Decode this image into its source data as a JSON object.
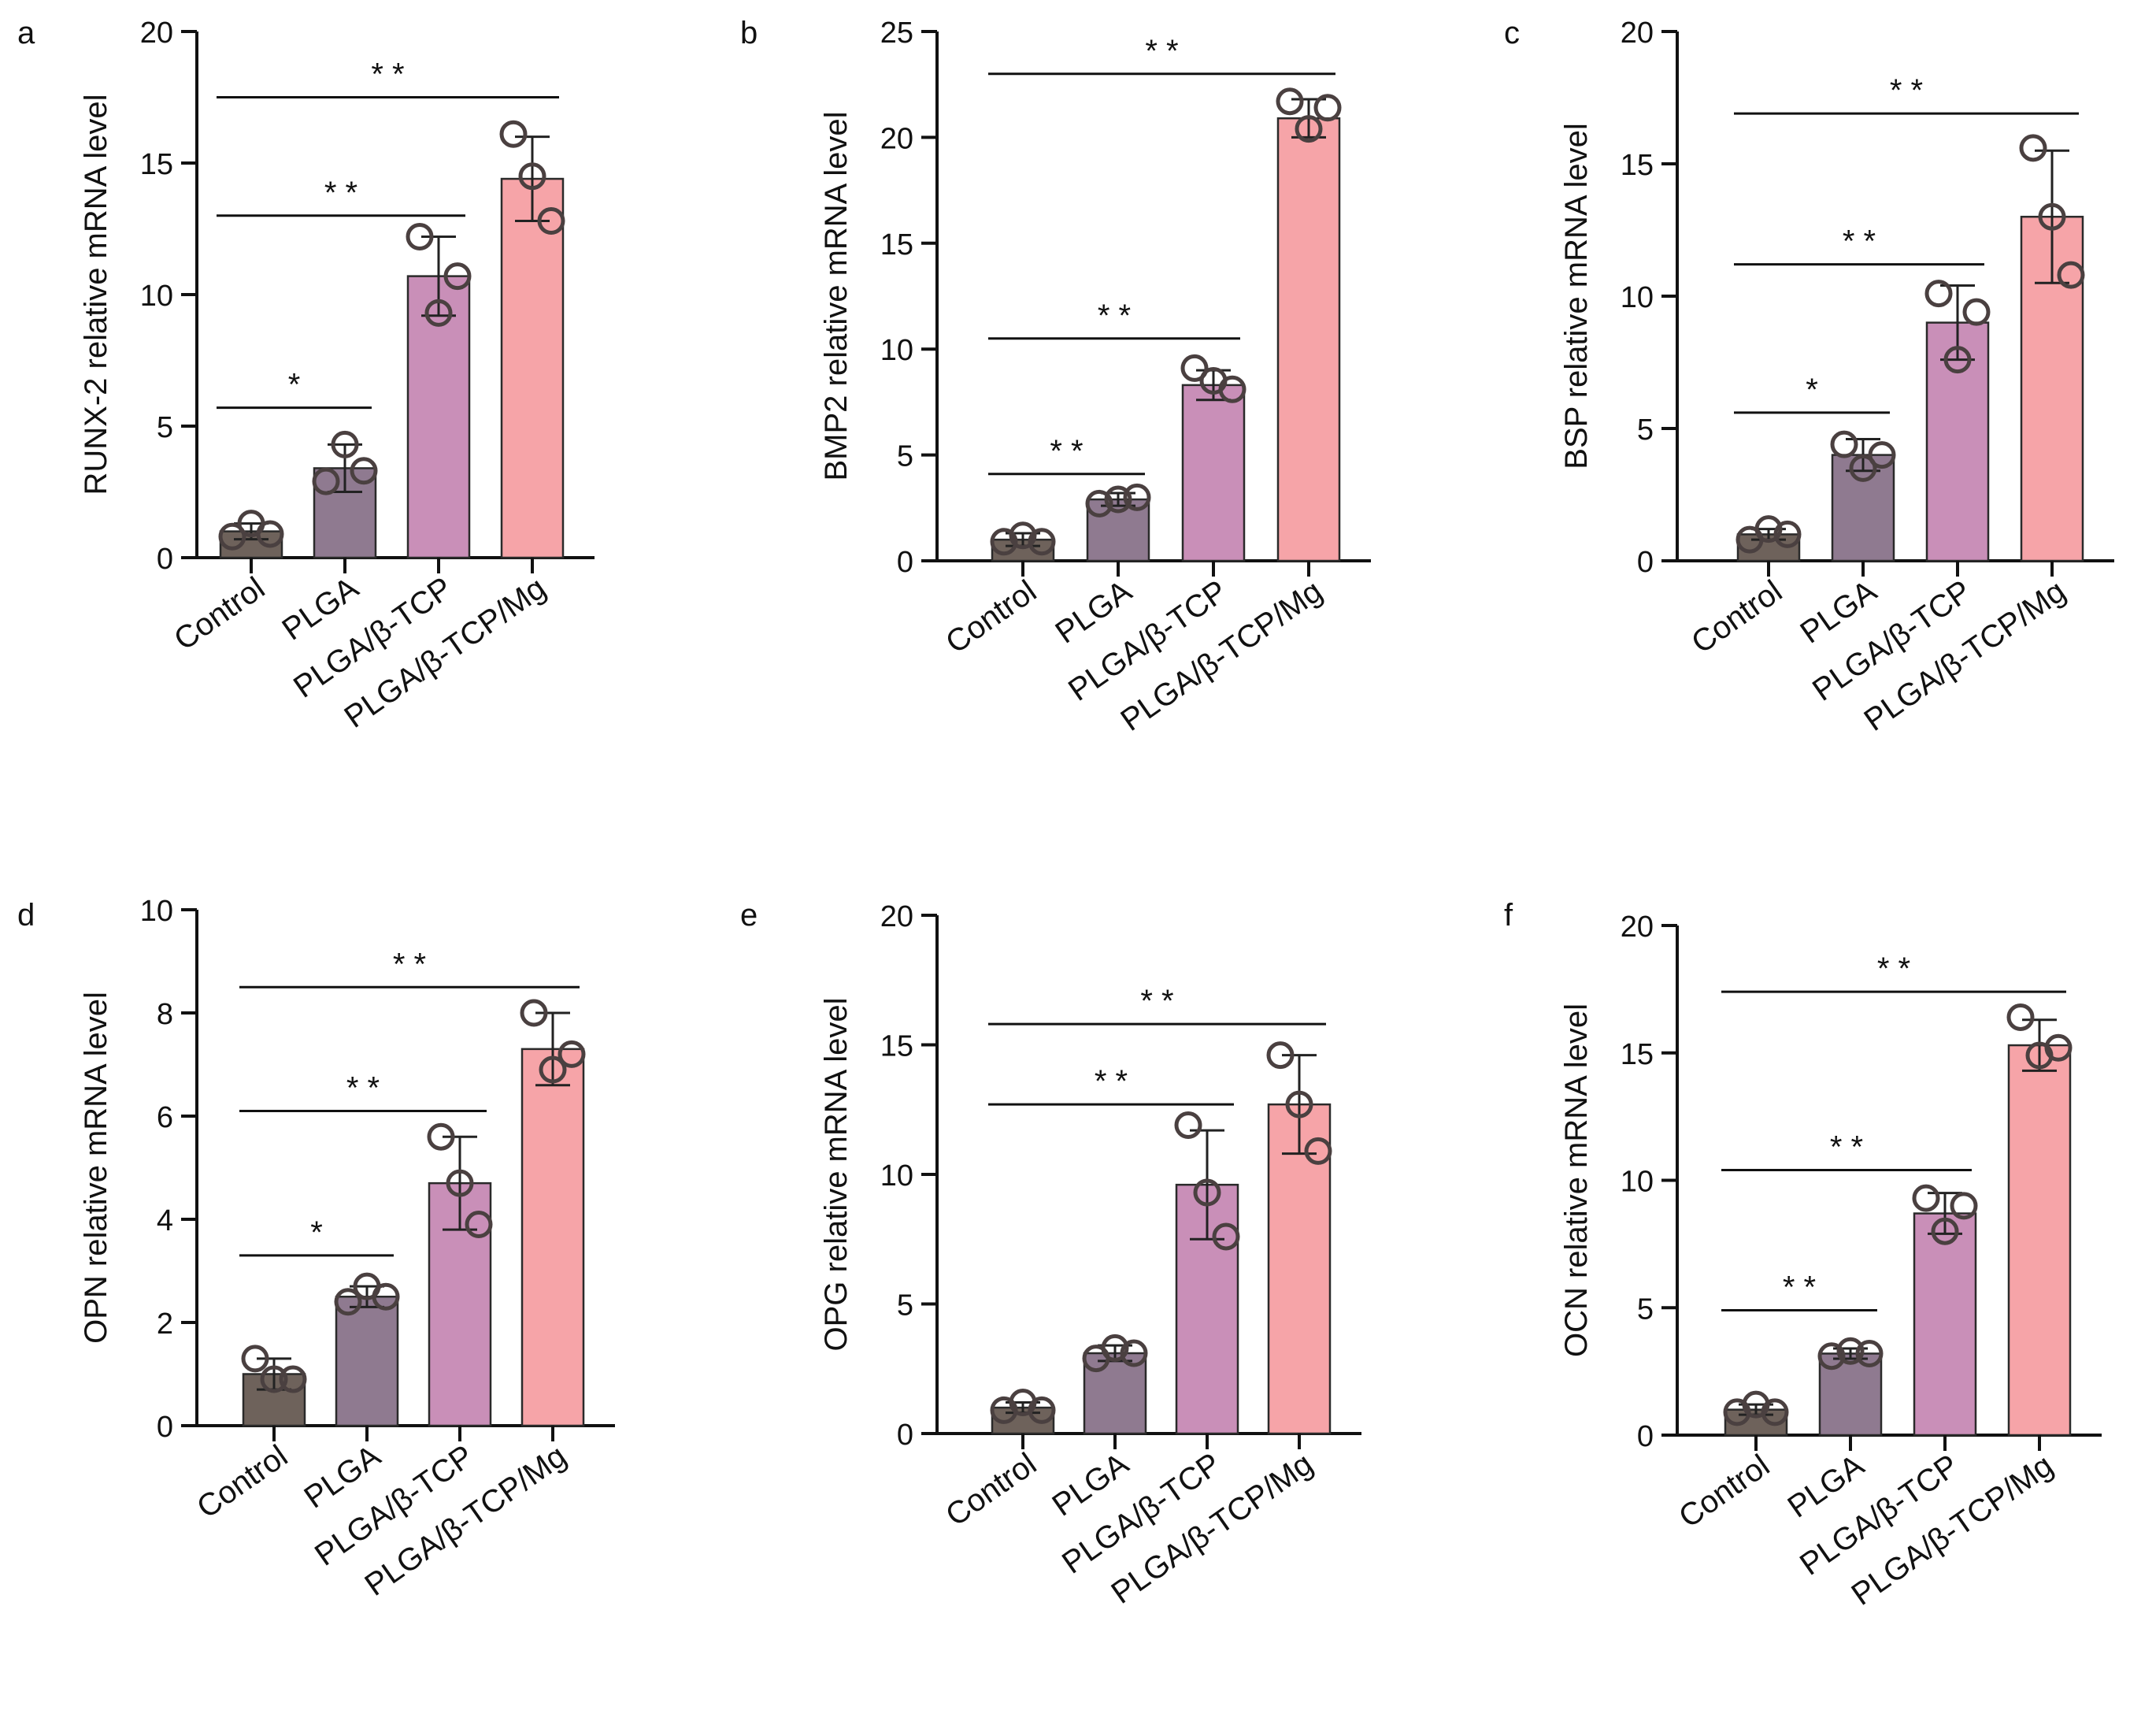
{
  "colors": {
    "axis": "#111111",
    "bar_fills": [
      "#6e625b",
      "#8f7a90",
      "#c98fb8",
      "#f6a4a8"
    ],
    "point_stroke": "#4a4040"
  },
  "chart_data": [
    {
      "type": "bar",
      "panel": "a",
      "ylabel": "RUNX-2 relative mRNA level",
      "categories": [
        "Control",
        "PLGA",
        "PLGA/β-TCP",
        "PLGA/β-TCP/Mg"
      ],
      "values": [
        1.0,
        3.4,
        10.7,
        14.4
      ],
      "sd": [
        0.3,
        0.9,
        1.5,
        1.6
      ],
      "points": [
        [
          0.8,
          1.3,
          0.9
        ],
        [
          2.9,
          4.3,
          3.3
        ],
        [
          12.2,
          9.3,
          10.7
        ],
        [
          16.1,
          14.5,
          12.8
        ]
      ],
      "ylim": [
        0,
        20
      ],
      "yticks": [
        0,
        5,
        10,
        15,
        20
      ],
      "significance": [
        {
          "from": 0,
          "to": 3,
          "y": 17.5,
          "label": "* *"
        },
        {
          "from": 0,
          "to": 2,
          "y": 13.0,
          "label": "* *"
        },
        {
          "from": 0,
          "to": 1,
          "y": 5.7,
          "label": "*"
        }
      ]
    },
    {
      "type": "bar",
      "panel": "b",
      "ylabel": "BMP2 relative mRNA level",
      "categories": [
        "Control",
        "PLGA",
        "PLGA/β-TCP",
        "PLGA/β-TCP/Mg"
      ],
      "values": [
        1.0,
        2.9,
        8.3,
        20.9
      ],
      "sd": [
        0.3,
        0.3,
        0.7,
        0.9
      ],
      "points": [
        [
          0.9,
          1.2,
          0.9
        ],
        [
          2.7,
          2.9,
          3.0
        ],
        [
          9.1,
          8.5,
          8.1
        ],
        [
          21.7,
          20.4,
          21.4
        ]
      ],
      "ylim": [
        0,
        25
      ],
      "yticks": [
        0,
        5,
        10,
        15,
        20,
        25
      ],
      "significance": [
        {
          "from": 0,
          "to": 3,
          "y": 23.0,
          "label": "* *"
        },
        {
          "from": 0,
          "to": 2,
          "y": 10.5,
          "label": "* *"
        },
        {
          "from": 0,
          "to": 1,
          "y": 4.1,
          "label": "* *"
        }
      ]
    },
    {
      "type": "bar",
      "panel": "c",
      "ylabel": "BSP relative mRNA level",
      "categories": [
        "Control",
        "PLGA",
        "PLGA/β-TCP",
        "PLGA/β-TCP/Mg"
      ],
      "values": [
        1.0,
        4.0,
        9.0,
        13.0
      ],
      "sd": [
        0.2,
        0.6,
        1.4,
        2.5
      ],
      "points": [
        [
          0.8,
          1.2,
          1.0
        ],
        [
          4.4,
          3.5,
          4.0
        ],
        [
          10.1,
          7.6,
          9.4
        ],
        [
          15.6,
          13.0,
          10.8
        ]
      ],
      "ylim": [
        0,
        20
      ],
      "yticks": [
        0,
        5,
        10,
        15,
        20
      ],
      "significance": [
        {
          "from": 0,
          "to": 3,
          "y": 16.9,
          "label": "* *"
        },
        {
          "from": 0,
          "to": 2,
          "y": 11.2,
          "label": "* *"
        },
        {
          "from": 0,
          "to": 1,
          "y": 5.6,
          "label": "*"
        }
      ]
    },
    {
      "type": "bar",
      "panel": "d",
      "ylabel": "OPN relative mRNA level",
      "categories": [
        "Control",
        "PLGA",
        "PLGA/β-TCP",
        "PLGA/β-TCP/Mg"
      ],
      "values": [
        1.0,
        2.5,
        4.7,
        7.3
      ],
      "sd": [
        0.3,
        0.2,
        0.9,
        0.7
      ],
      "points": [
        [
          1.3,
          0.9,
          0.9
        ],
        [
          2.4,
          2.7,
          2.5
        ],
        [
          5.6,
          4.7,
          3.9
        ],
        [
          8.0,
          6.9,
          7.2
        ]
      ],
      "ylim": [
        0,
        10
      ],
      "yticks": [
        0,
        2,
        4,
        6,
        8,
        10
      ],
      "significance": [
        {
          "from": 0,
          "to": 3,
          "y": 8.5,
          "label": "* *"
        },
        {
          "from": 0,
          "to": 2,
          "y": 6.1,
          "label": "* *"
        },
        {
          "from": 0,
          "to": 1,
          "y": 3.3,
          "label": "*"
        }
      ]
    },
    {
      "type": "bar",
      "panel": "e",
      "ylabel": "OPG relative mRNA level",
      "categories": [
        "Control",
        "PLGA",
        "PLGA/β-TCP",
        "PLGA/β-TCP/Mg"
      ],
      "values": [
        1.0,
        3.1,
        9.6,
        12.7
      ],
      "sd": [
        0.2,
        0.3,
        2.1,
        1.9
      ],
      "points": [
        [
          0.9,
          1.2,
          0.9
        ],
        [
          2.9,
          3.3,
          3.1
        ],
        [
          11.9,
          9.3,
          7.6
        ],
        [
          14.6,
          12.7,
          10.9
        ]
      ],
      "ylim": [
        0,
        20
      ],
      "yticks": [
        0,
        5,
        10,
        15,
        20
      ],
      "significance": [
        {
          "from": 0,
          "to": 3,
          "y": 15.8,
          "label": "* *"
        },
        {
          "from": 0,
          "to": 2,
          "y": 12.7,
          "label": "* *"
        }
      ]
    },
    {
      "type": "bar",
      "panel": "f",
      "ylabel": "OCN relative mRNA level",
      "categories": [
        "Control",
        "PLGA",
        "PLGA/β-TCP",
        "PLGA/β-TCP/Mg"
      ],
      "values": [
        1.0,
        3.2,
        8.7,
        15.3
      ],
      "sd": [
        0.2,
        0.2,
        0.8,
        1.0
      ],
      "points": [
        [
          0.9,
          1.2,
          0.9
        ],
        [
          3.1,
          3.3,
          3.2
        ],
        [
          9.3,
          8.0,
          9.0
        ],
        [
          16.4,
          14.9,
          15.2
        ]
      ],
      "ylim": [
        0,
        20
      ],
      "yticks": [
        0,
        5,
        10,
        15,
        20
      ],
      "significance": [
        {
          "from": 0,
          "to": 3,
          "y": 17.4,
          "label": "* *"
        },
        {
          "from": 0,
          "to": 2,
          "y": 10.4,
          "label": "* *"
        },
        {
          "from": 0,
          "to": 1,
          "y": 4.9,
          "label": "* *"
        }
      ]
    }
  ]
}
